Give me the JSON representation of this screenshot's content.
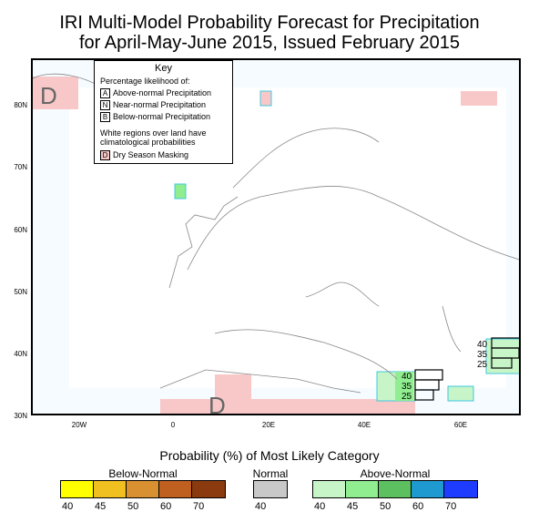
{
  "title_line1": "IRI Multi-Model Probability Forecast for Precipitation",
  "title_line2": "for April-May-June 2015, Issued February 2015",
  "lat_labels": [
    "80N",
    "70N",
    "60N",
    "50N",
    "40N",
    "30N"
  ],
  "lon_labels": [
    "20W",
    "0",
    "20E",
    "40E",
    "60E"
  ],
  "key": {
    "title": "Key",
    "subtitle": "Percentage likelihood of:",
    "items": [
      {
        "letter": "A",
        "label": "Above-normal Precipitation"
      },
      {
        "letter": "N",
        "label": "Near-normal Precipitation"
      },
      {
        "letter": "B",
        "label": "Below-normal Precipitation"
      }
    ],
    "white_note_1": "White regions over land have",
    "white_note_2": "climatological probabilities",
    "dry_letter": "D",
    "dry_label": "Dry Season Masking"
  },
  "map_marks": {
    "dry_letter": "D",
    "bars_east": [
      "40",
      "35",
      "25"
    ],
    "bars_mid": [
      "40",
      "35",
      "25"
    ]
  },
  "legend": {
    "title": "Probability (%) of Most Likely Category",
    "below_label": "Below-Normal",
    "normal_label": "Normal",
    "above_label": "Above-Normal",
    "below_ticks": [
      "40",
      "45",
      "50",
      "60",
      "70"
    ],
    "normal_ticks": [
      "40"
    ],
    "above_ticks": [
      "40",
      "45",
      "50",
      "60",
      "70"
    ],
    "below_colors": [
      "#ffff00",
      "#f0c020",
      "#d99030",
      "#c06020",
      "#8b3a0f"
    ],
    "normal_colors": [
      "#c8c8c8"
    ],
    "above_colors": [
      "#c8f5c8",
      "#90ee90",
      "#5cc060",
      "#1e9ad0",
      "#1e3cff"
    ]
  },
  "colors": {
    "dry_mask": "#f8c8c8",
    "above_light": "#c8f5c8",
    "above_mid": "#90ee90",
    "cyan_border": "#40c8e0",
    "land_line": "#888888"
  }
}
